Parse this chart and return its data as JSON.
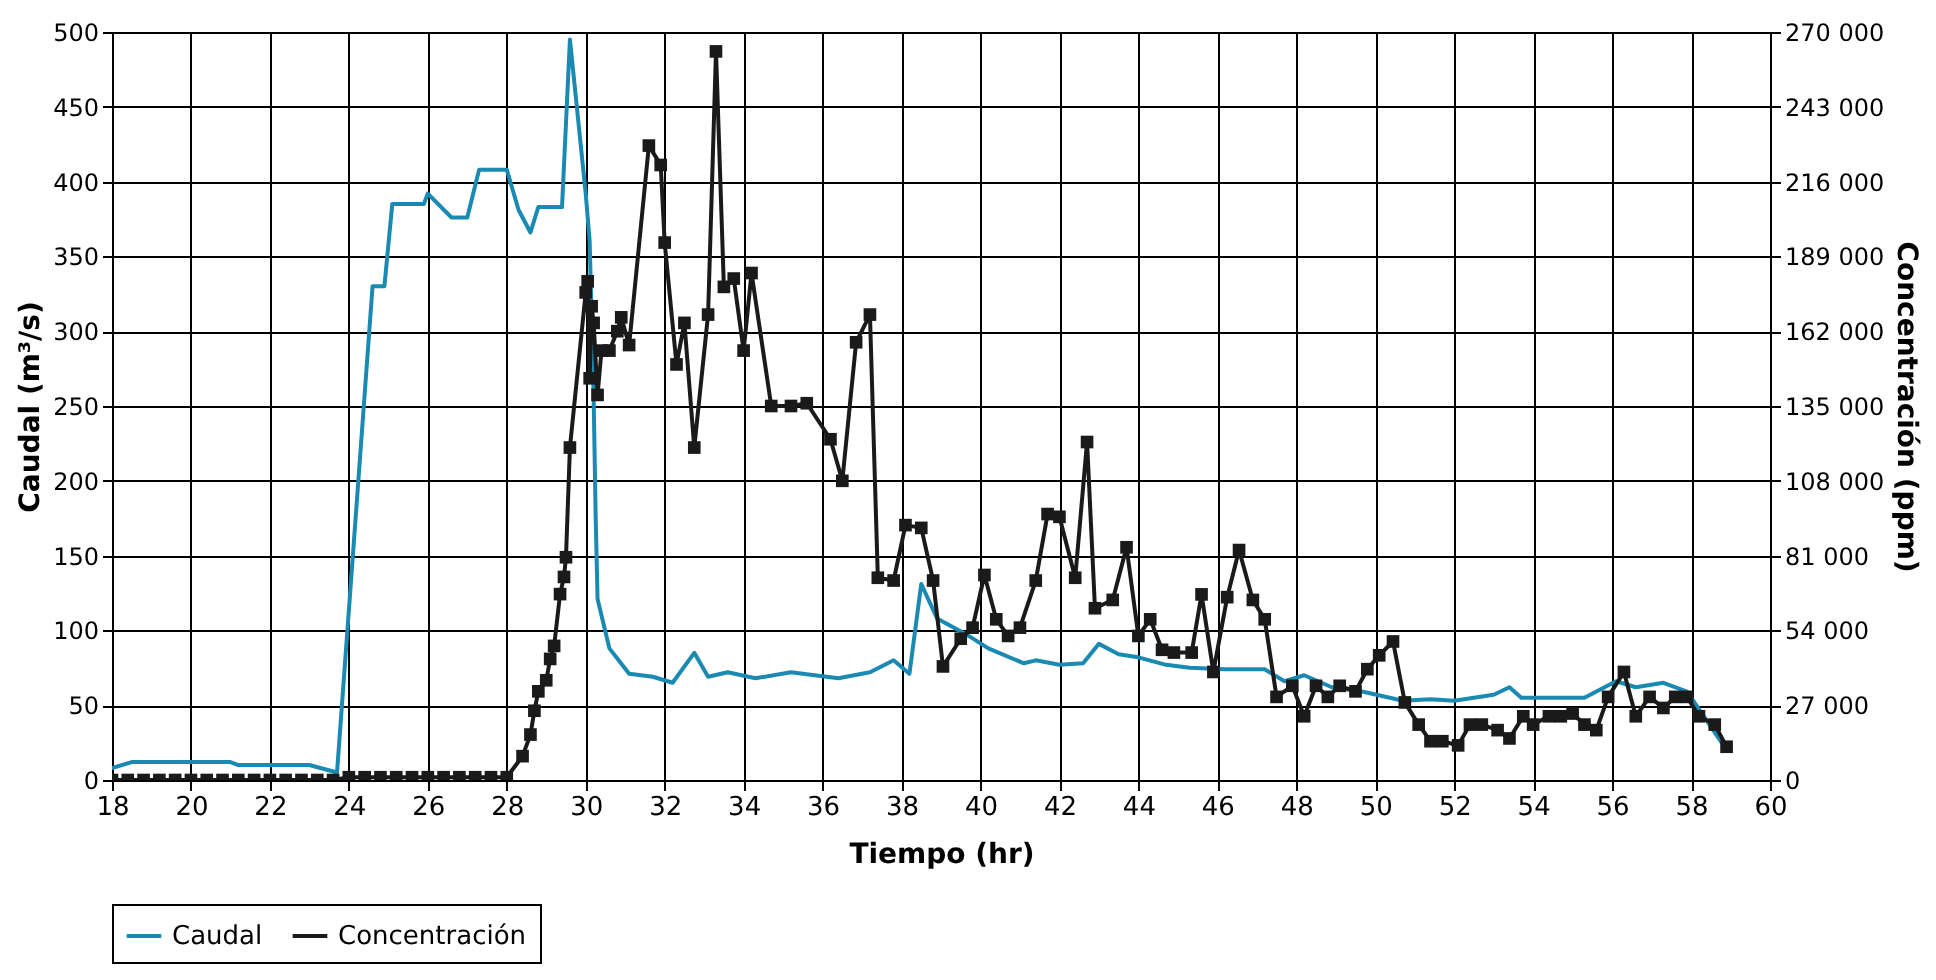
{
  "chart_data": {
    "type": "line",
    "xlabel": "Tiempo (hr)",
    "ylabel": "Caudal (m³/s)",
    "y2label": "Concentración (ppm)",
    "xlim": [
      18,
      60
    ],
    "xticks": [
      18,
      20,
      22,
      24,
      26,
      28,
      30,
      32,
      34,
      36,
      38,
      40,
      42,
      44,
      46,
      48,
      50,
      52,
      54,
      56,
      58,
      60
    ],
    "ylim": [
      0,
      500
    ],
    "yticks": [
      0,
      50,
      100,
      150,
      200,
      250,
      300,
      350,
      400,
      450,
      500
    ],
    "y2lim": [
      0,
      270000
    ],
    "y2ticks": [
      {
        "value": 0,
        "label": "0"
      },
      {
        "value": 27000,
        "label": "27 000"
      },
      {
        "value": 54000,
        "label": "54 000"
      },
      {
        "value": 81000,
        "label": "81 000"
      },
      {
        "value": 108000,
        "label": "108 000"
      },
      {
        "value": 135000,
        "label": "135 000"
      },
      {
        "value": 162000,
        "label": "162 000"
      },
      {
        "value": 189000,
        "label": "189 000"
      },
      {
        "value": 216000,
        "label": "216 000"
      },
      {
        "value": 243000,
        "label": "243 000"
      },
      {
        "value": 270000,
        "label": "270 000"
      }
    ],
    "grid": true,
    "legend": "bottom",
    "line_style": "solid",
    "series": [
      {
        "name": "Caudal",
        "color": "#1a8ab3",
        "marker": "none",
        "x": [
          18.0,
          18.5,
          19,
          20,
          21,
          21.2,
          22,
          23,
          23.7,
          24.6,
          24.9,
          25.1,
          25.9,
          26.0,
          26.6,
          27.0,
          27.3,
          28.0,
          28.3,
          28.6,
          28.8,
          29.4,
          29.6,
          30.0,
          30.1,
          30.2,
          30.25,
          30.3,
          30.6,
          31.1,
          31.7,
          32.2,
          32.75,
          33.1,
          33.6,
          34.3,
          35.2,
          36.4,
          37.2,
          37.8,
          38.2,
          38.5,
          38.9,
          39.6,
          40.2,
          41.1,
          41.4,
          42.0,
          42.6,
          43.0,
          43.5,
          44.0,
          44.7,
          45.3,
          46.2,
          47.2,
          47.7,
          48.2,
          48.9,
          49.7,
          50.7,
          51.4,
          52.0,
          53.0,
          53.4,
          53.7,
          55.3,
          56.1,
          56.6,
          57.3,
          57.9,
          58.8
        ],
        "values": [
          8,
          12,
          12,
          12,
          12,
          10,
          10,
          10,
          5,
          330,
          330,
          385,
          385,
          392,
          376,
          376,
          408,
          408,
          381,
          366,
          383,
          383,
          495,
          392,
          360,
          257,
          179,
          121,
          88,
          71,
          69,
          65,
          85,
          69,
          72,
          68,
          72,
          68,
          72,
          80,
          71,
          131,
          108,
          98,
          88,
          78,
          80,
          77,
          78,
          91,
          84,
          82,
          77,
          75,
          74,
          74,
          66,
          70,
          62,
          59,
          53,
          54,
          53,
          57,
          62,
          55,
          55,
          66,
          62,
          65,
          59,
          24
        ]
      },
      {
        "name": "Concentración",
        "color": "#1a1a1a",
        "marker": "square",
        "axis": "y2",
        "x": [
          18.0,
          18.4,
          18.8,
          19.2,
          19.6,
          20.0,
          20.4,
          20.8,
          21.2,
          21.6,
          22.0,
          22.4,
          22.8,
          23.2,
          23.6,
          24.0,
          24.4,
          24.8,
          25.2,
          25.6,
          26.0,
          26.4,
          26.8,
          27.2,
          27.6,
          28.0,
          28.4,
          28.6,
          28.7,
          28.8,
          29.0,
          29.1,
          29.2,
          29.35,
          29.45,
          29.5,
          29.6,
          30.0,
          30.05,
          30.1,
          30.15,
          30.2,
          30.3,
          30.4,
          30.6,
          30.8,
          30.9,
          31.1,
          31.6,
          31.9,
          32.0,
          32.3,
          32.5,
          32.75,
          33.1,
          33.3,
          33.5,
          33.75,
          34.0,
          34.2,
          34.7,
          35.2,
          35.6,
          36.2,
          36.5,
          36.85,
          37.2,
          37.4,
          37.8,
          38.1,
          38.5,
          38.8,
          39.05,
          39.5,
          39.8,
          40.1,
          40.4,
          40.7,
          41.0,
          41.4,
          41.7,
          42.0,
          42.4,
          42.7,
          42.9,
          43.35,
          43.7,
          44.0,
          44.3,
          44.6,
          44.9,
          45.35,
          45.6,
          45.9,
          46.25,
          46.55,
          46.9,
          47.2,
          47.5,
          47.9,
          48.2,
          48.5,
          48.8,
          49.1,
          49.5,
          49.8,
          50.1,
          50.45,
          50.75,
          51.1,
          51.4,
          51.7,
          52.1,
          52.4,
          52.7,
          53.1,
          53.4,
          53.75,
          54.0,
          54.4,
          54.7,
          55.0,
          55.3,
          55.6,
          55.9,
          56.3,
          56.6,
          56.95,
          57.3,
          57.6,
          57.9,
          58.2,
          58.6,
          58.9
        ],
        "values": [
          0,
          0,
          0,
          0,
          0,
          0,
          0,
          0,
          0,
          0,
          0,
          0,
          0,
          0,
          0,
          1000,
          1000,
          1000,
          1000,
          1000,
          1000,
          1000,
          1000,
          1000,
          1000,
          1000,
          8600,
          16400,
          25000,
          32000,
          36000,
          43700,
          48400,
          67100,
          73300,
          80400,
          120000,
          176000,
          180000,
          145000,
          171000,
          165000,
          139000,
          155000,
          155000,
          162000,
          167000,
          157000,
          229000,
          222000,
          194000,
          150000,
          165000,
          120000,
          168000,
          263000,
          178000,
          181000,
          155000,
          183000,
          135000,
          135000,
          136000,
          123000,
          108000,
          158000,
          168000,
          73000,
          72000,
          92000,
          91000,
          72000,
          41000,
          51000,
          55000,
          74000,
          58000,
          52000,
          55000,
          72000,
          96000,
          95000,
          73000,
          122000,
          62000,
          65000,
          84000,
          52000,
          58000,
          47000,
          46000,
          46000,
          67000,
          39000,
          66000,
          83000,
          65000,
          58000,
          30000,
          34000,
          23000,
          34000,
          30000,
          34000,
          32000,
          40000,
          45000,
          50000,
          28000,
          20000,
          14000,
          14000,
          12500,
          20000,
          20000,
          18000,
          15000,
          23000,
          20000,
          23000,
          23000,
          24000,
          20000,
          18000,
          30000,
          39000,
          23000,
          30000,
          26000,
          30000,
          30000,
          23000,
          20000,
          12000
        ]
      }
    ]
  }
}
